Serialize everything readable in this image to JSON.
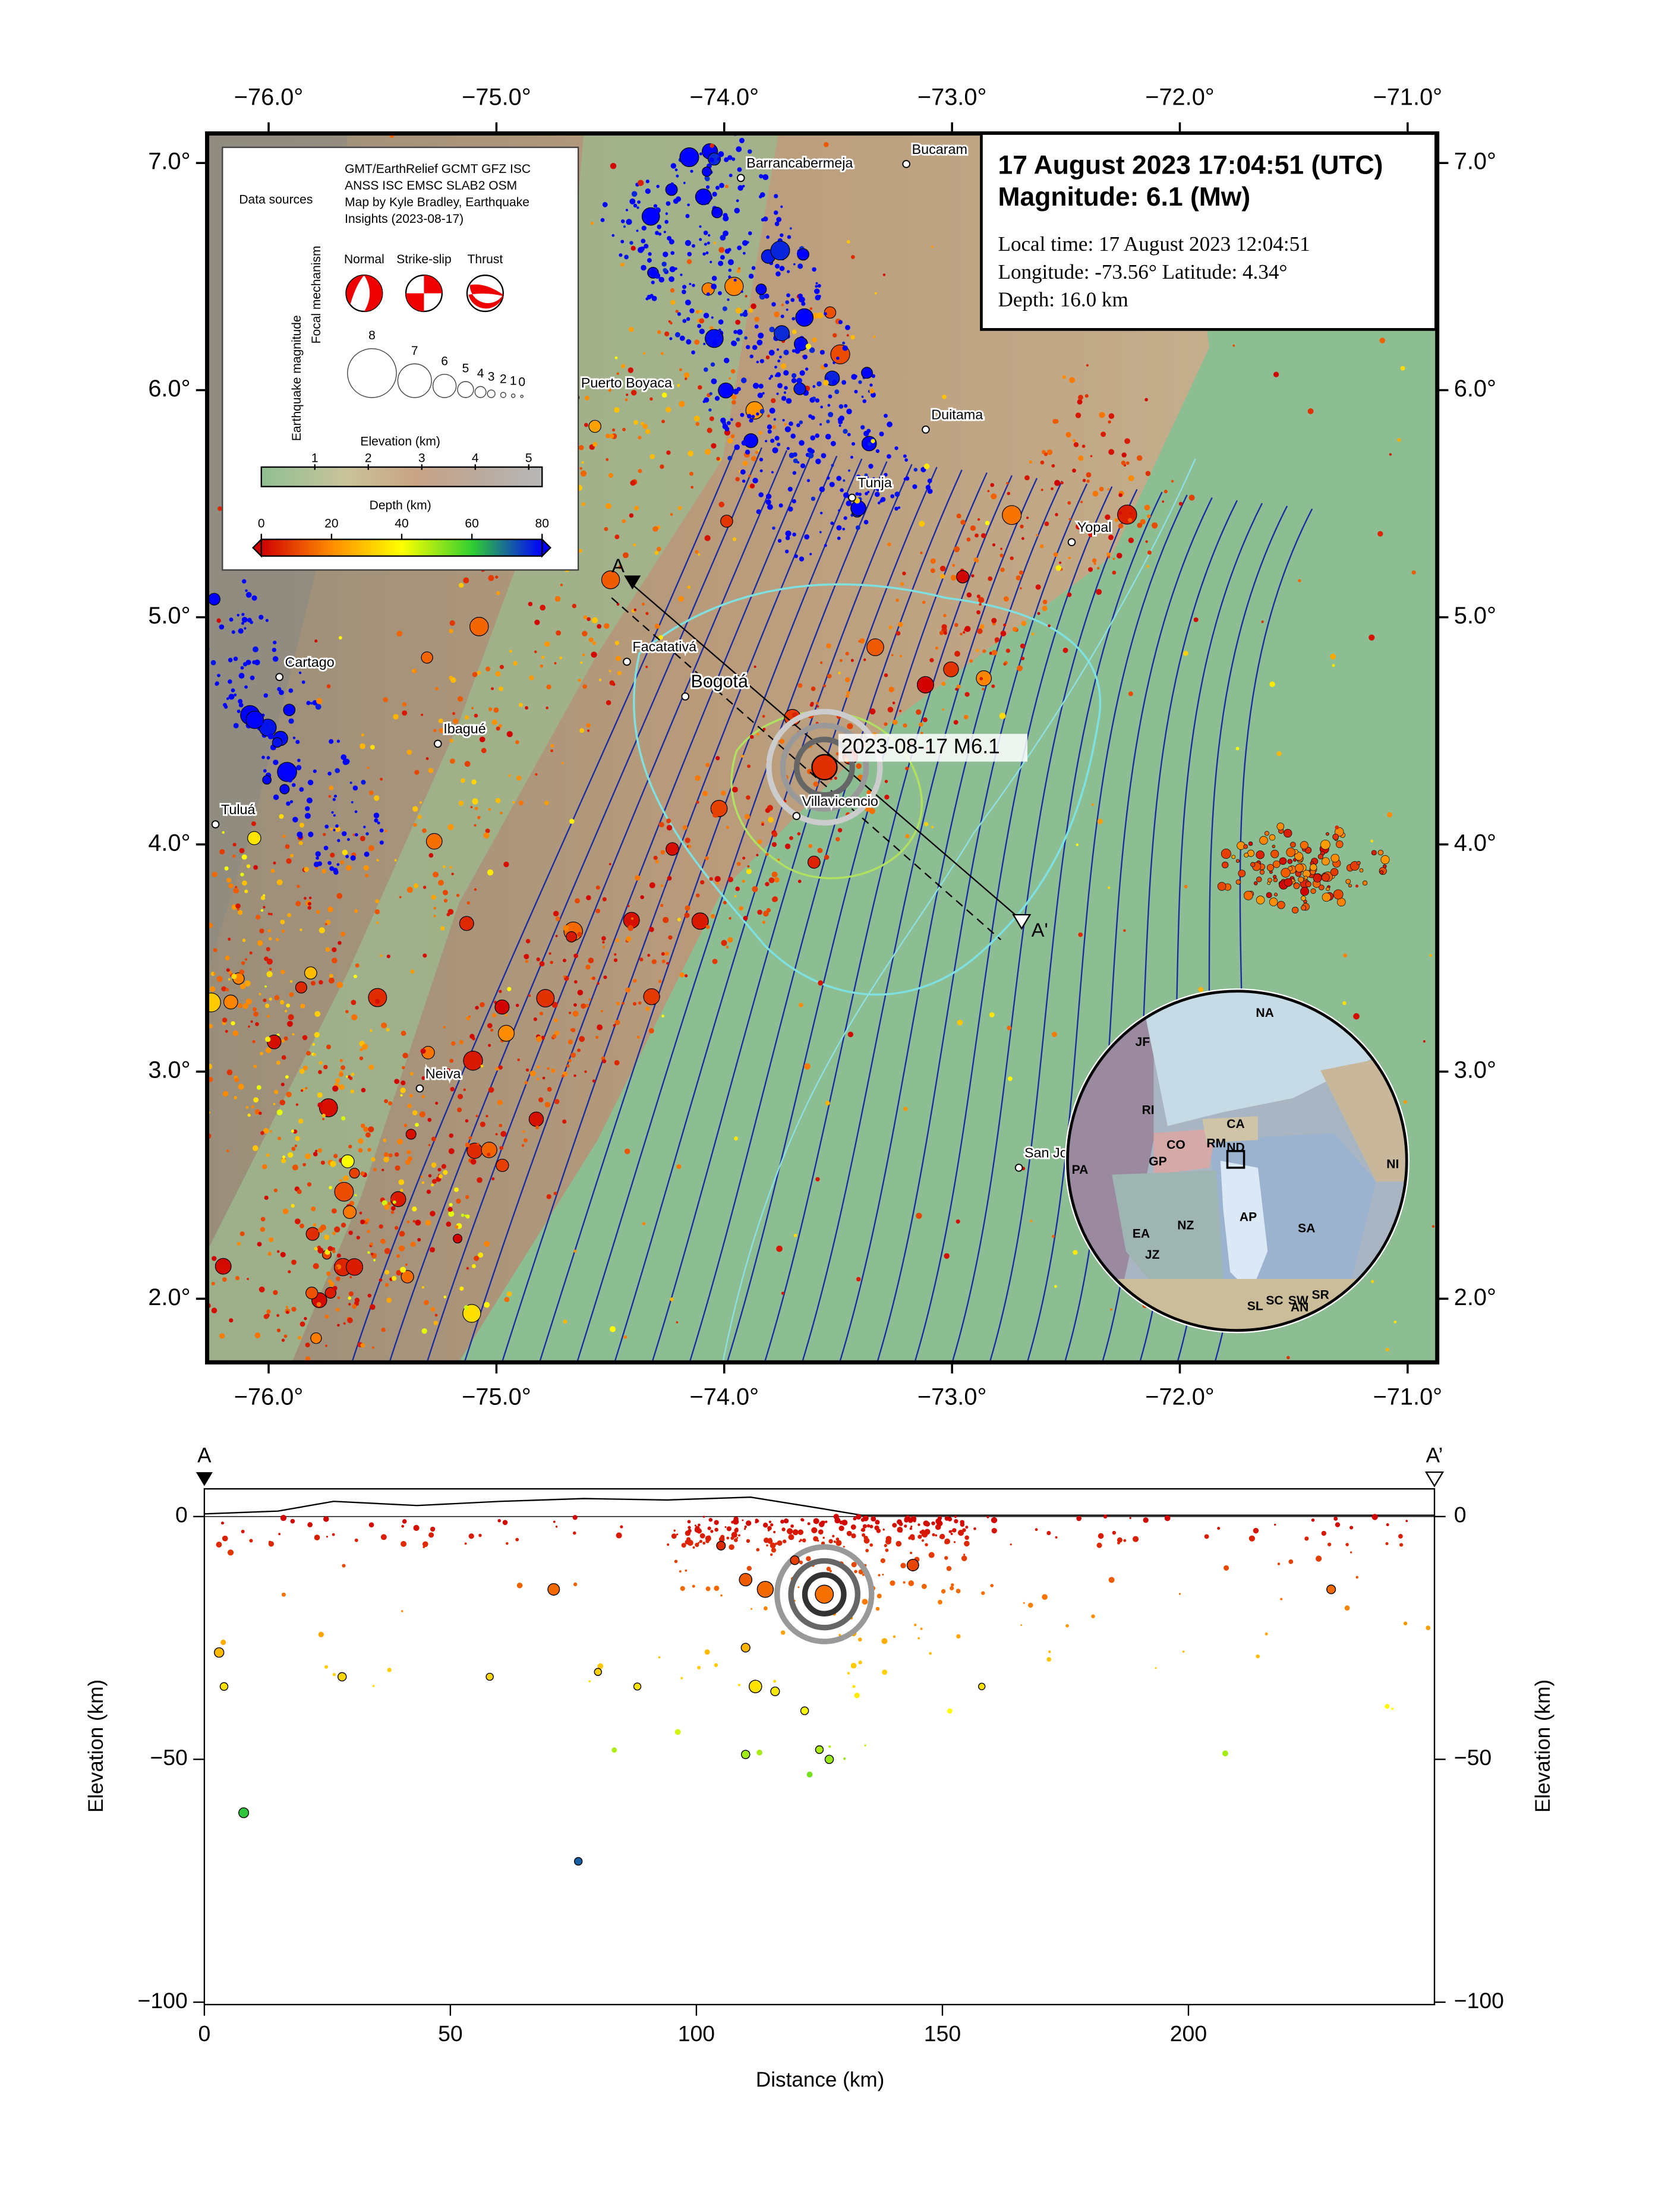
{
  "map": {
    "title_lines": [
      "17 August 2023 17:04:51 (UTC)",
      "Magnitude: 6.1 (Mw)"
    ],
    "info_lines": [
      "Local time: 17 August 2023 12:04:51",
      "Longitude: -73.56°  Latitude: 4.34°",
      "Depth: 16.0 km"
    ],
    "xlim": [
      -76.27,
      -70.87
    ],
    "ylim": [
      1.72,
      7.13
    ],
    "xticks": [
      {
        "value": -76,
        "label": "−76.0°"
      },
      {
        "value": -75,
        "label": "−75.0°"
      },
      {
        "value": -74,
        "label": "−74.0°"
      },
      {
        "value": -73,
        "label": "−73.0°"
      },
      {
        "value": -72,
        "label": "−72.0°"
      },
      {
        "value": -71,
        "label": "−71.0°"
      }
    ],
    "yticks": [
      {
        "value": 2,
        "label": "2.0°"
      },
      {
        "value": 3,
        "label": "3.0°"
      },
      {
        "value": 4,
        "label": "4.0°"
      },
      {
        "value": 5,
        "label": "5.0°"
      },
      {
        "value": 6,
        "label": "6.0°"
      },
      {
        "value": 7,
        "label": "7.0°"
      }
    ],
    "epicenter": {
      "lon": -73.56,
      "lat": 4.34
    },
    "event_label": "2023-08-17 M6.1",
    "cities": [
      "Barrancabermeja",
      "Bucaram",
      "Puerto Boyaca",
      "Duitama",
      "Tunja",
      "Yopal",
      "Facatativá",
      "Bogotá",
      "Cartago",
      "Ibagué",
      "Villavicencio",
      "Tuluá",
      "Neiva",
      "San Jo"
    ],
    "profile_labels": [
      "A",
      "A'"
    ]
  },
  "legend": {
    "sources_title": "Data sources",
    "sources_lines": [
      "GMT/EarthRelief GCMT GFZ ISC",
      "ANSS ISC EMSC SLAB2 OSM",
      "Map by Kyle Bradley, Earthquake",
      "Insights (2023-08-17)"
    ],
    "focal_title": "Focal mechanism",
    "focal_types": [
      "Normal",
      "Strike-slip",
      "Thrust"
    ],
    "magnitude_title": "Earthquake magnitude",
    "magnitudes": [
      8,
      7,
      6,
      5,
      4,
      3,
      2,
      1,
      0
    ],
    "elevation_title": "Elevation (km)",
    "elevation_ticks": [
      1,
      2,
      3,
      4,
      5
    ],
    "depth_title": "Depth (km)",
    "depth_ticks": [
      0,
      20,
      40,
      60,
      80
    ]
  },
  "globe": {
    "plates": [
      "JF",
      "NA",
      "RI",
      "CO",
      "CA",
      "RM",
      "PA",
      "GP",
      "ND",
      "NZ",
      "AP",
      "SA",
      "EA",
      "JZ",
      "SL",
      "SC",
      "SW",
      "SR",
      "AN",
      "NI"
    ]
  },
  "cross_section": {
    "start_label": "A",
    "end_label": "A’",
    "xlabel": "Distance (km)",
    "ylabel": "Elevation (km)",
    "xlim": [
      0,
      250
    ],
    "ylim": [
      -100.5,
      5.7
    ],
    "xticks": [
      0,
      50,
      100,
      150,
      200
    ],
    "yticks": [
      0,
      {
        "value": -50,
        "label": "−50"
      },
      {
        "value": -100,
        "label": "−100"
      }
    ],
    "events": [
      {
        "distance": 8,
        "depth": -61,
        "magnitude": 4.6
      },
      {
        "distance": 76,
        "depth": -71,
        "magnitude": 4.0
      },
      {
        "distance": 3,
        "depth": -28,
        "magnitude": 4.5
      },
      {
        "distance": 4,
        "depth": -35,
        "magnitude": 4.0
      },
      {
        "distance": 28,
        "depth": -33,
        "magnitude": 4.2
      },
      {
        "distance": 58,
        "depth": -33,
        "magnitude": 3.8
      },
      {
        "distance": 80,
        "depth": -32,
        "magnitude": 3.8
      },
      {
        "distance": 88,
        "depth": -35,
        "magnitude": 3.8
      },
      {
        "distance": 71,
        "depth": -15,
        "magnitude": 5.0
      },
      {
        "distance": 114,
        "depth": -15,
        "magnitude": 5.8
      },
      {
        "distance": 110,
        "depth": -13,
        "magnitude": 5.2
      },
      {
        "distance": 144,
        "depth": -10,
        "magnitude": 5.0
      },
      {
        "distance": 229,
        "depth": -15,
        "magnitude": 4.3
      },
      {
        "distance": 112,
        "depth": -35,
        "magnitude": 5.2
      },
      {
        "distance": 116,
        "depth": -36,
        "magnitude": 4.3
      },
      {
        "distance": 122,
        "depth": -40,
        "magnitude": 4.0
      },
      {
        "distance": 110,
        "depth": -49,
        "magnitude": 4.2
      },
      {
        "distance": 125,
        "depth": -48,
        "magnitude": 4.0
      },
      {
        "distance": 127,
        "depth": -50,
        "magnitude": 4.2
      },
      {
        "distance": 110,
        "depth": -27,
        "magnitude": 4.3
      },
      {
        "distance": 105,
        "depth": -6,
        "magnitude": 4.3
      },
      {
        "distance": 120,
        "depth": -9,
        "magnitude": 4.3
      },
      {
        "distance": 158,
        "depth": -35,
        "magnitude": 3.6
      },
      {
        "distance": 126,
        "depth": -16,
        "magnitude": 6.1
      }
    ]
  }
}
